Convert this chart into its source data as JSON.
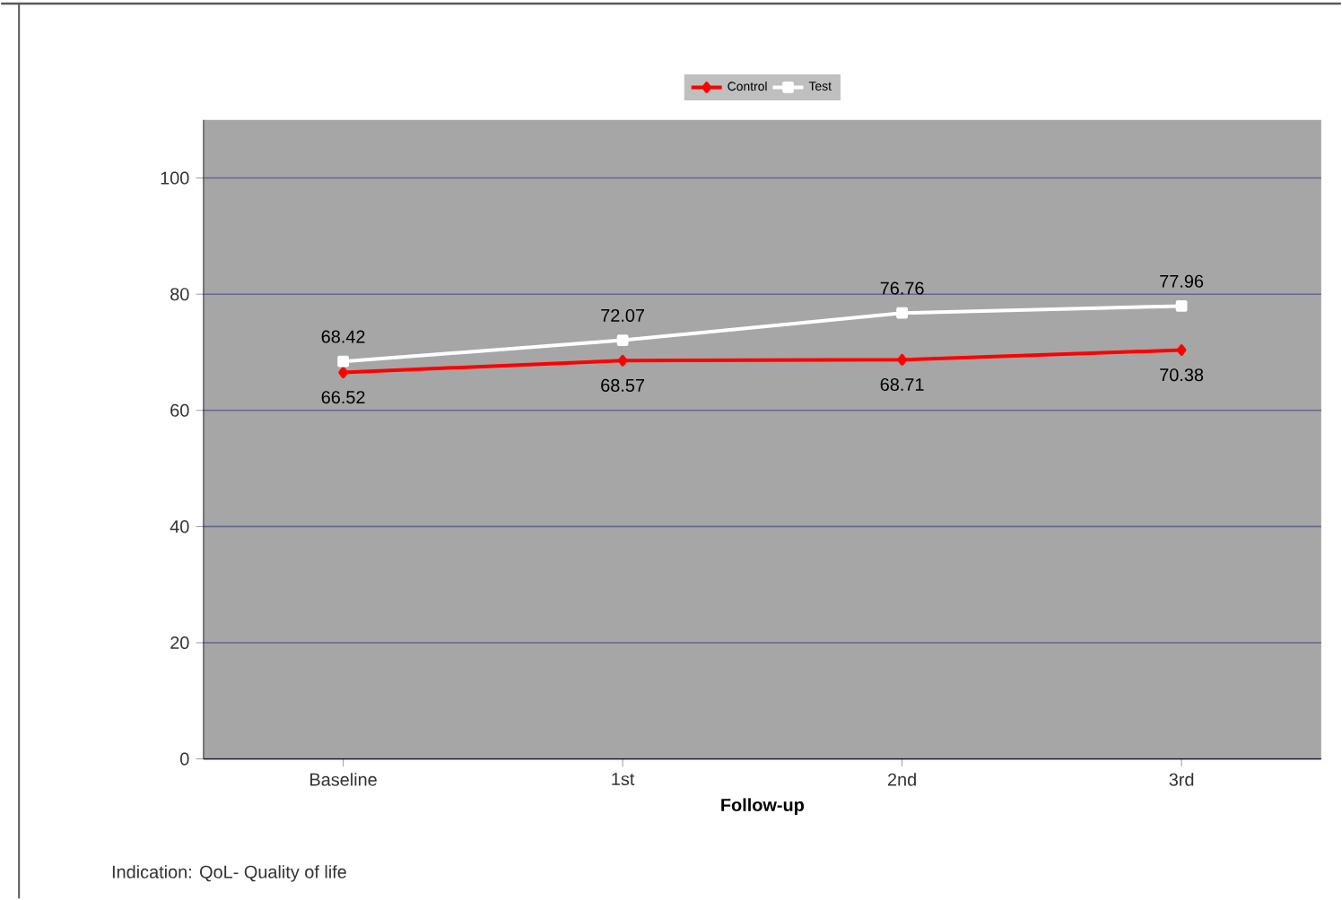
{
  "chart_data": {
    "type": "line",
    "xlabel": "Follow-up",
    "categories": [
      "Baseline",
      "1st",
      "2nd",
      "3rd"
    ],
    "series": [
      {
        "name": "Control",
        "color": "#ff0000",
        "values": [
          66.52,
          68.57,
          68.71,
          70.38
        ],
        "marker": "diamond"
      },
      {
        "name": "Test",
        "color": "#ffffff",
        "values": [
          68.42,
          72.07,
          76.76,
          77.96
        ],
        "marker": "square"
      }
    ],
    "ylim": [
      0,
      110
    ],
    "yticks": [
      0,
      20,
      40,
      60,
      80,
      100
    ],
    "grid": "y",
    "legend": "top",
    "data_labels": true,
    "line_style": "solid",
    "annotations": [
      "Indication: QoL- Quality of life"
    ]
  }
}
